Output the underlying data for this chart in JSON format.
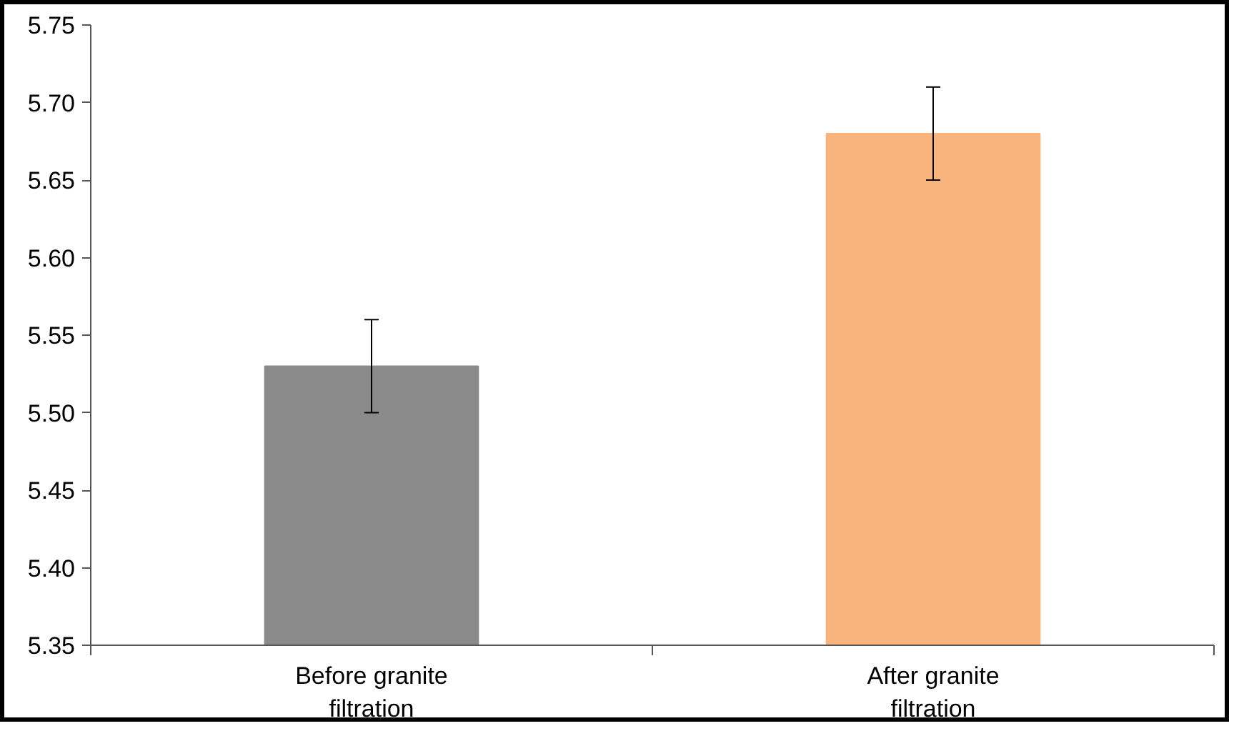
{
  "chart_data": {
    "type": "bar",
    "categories": [
      "Before granite filtration",
      "After granite filtration"
    ],
    "values": [
      5.53,
      5.68
    ],
    "errors": [
      0.03,
      0.03
    ],
    "colors": [
      "#8a8a8a",
      "#f9b47e"
    ],
    "ylim": [
      5.35,
      5.75
    ],
    "yticks": [
      {
        "value": 5.35,
        "label": "5.35"
      },
      {
        "value": 5.4,
        "label": "5.40"
      },
      {
        "value": 5.45,
        "label": "5.45"
      },
      {
        "value": 5.5,
        "label": "5.50"
      },
      {
        "value": 5.55,
        "label": "5.55"
      },
      {
        "value": 5.6,
        "label": "5.60"
      },
      {
        "value": 5.65,
        "label": "5.65"
      },
      {
        "value": 5.7,
        "label": "5.70"
      },
      {
        "value": 5.75,
        "label": "5.75"
      }
    ],
    "grid": false
  }
}
